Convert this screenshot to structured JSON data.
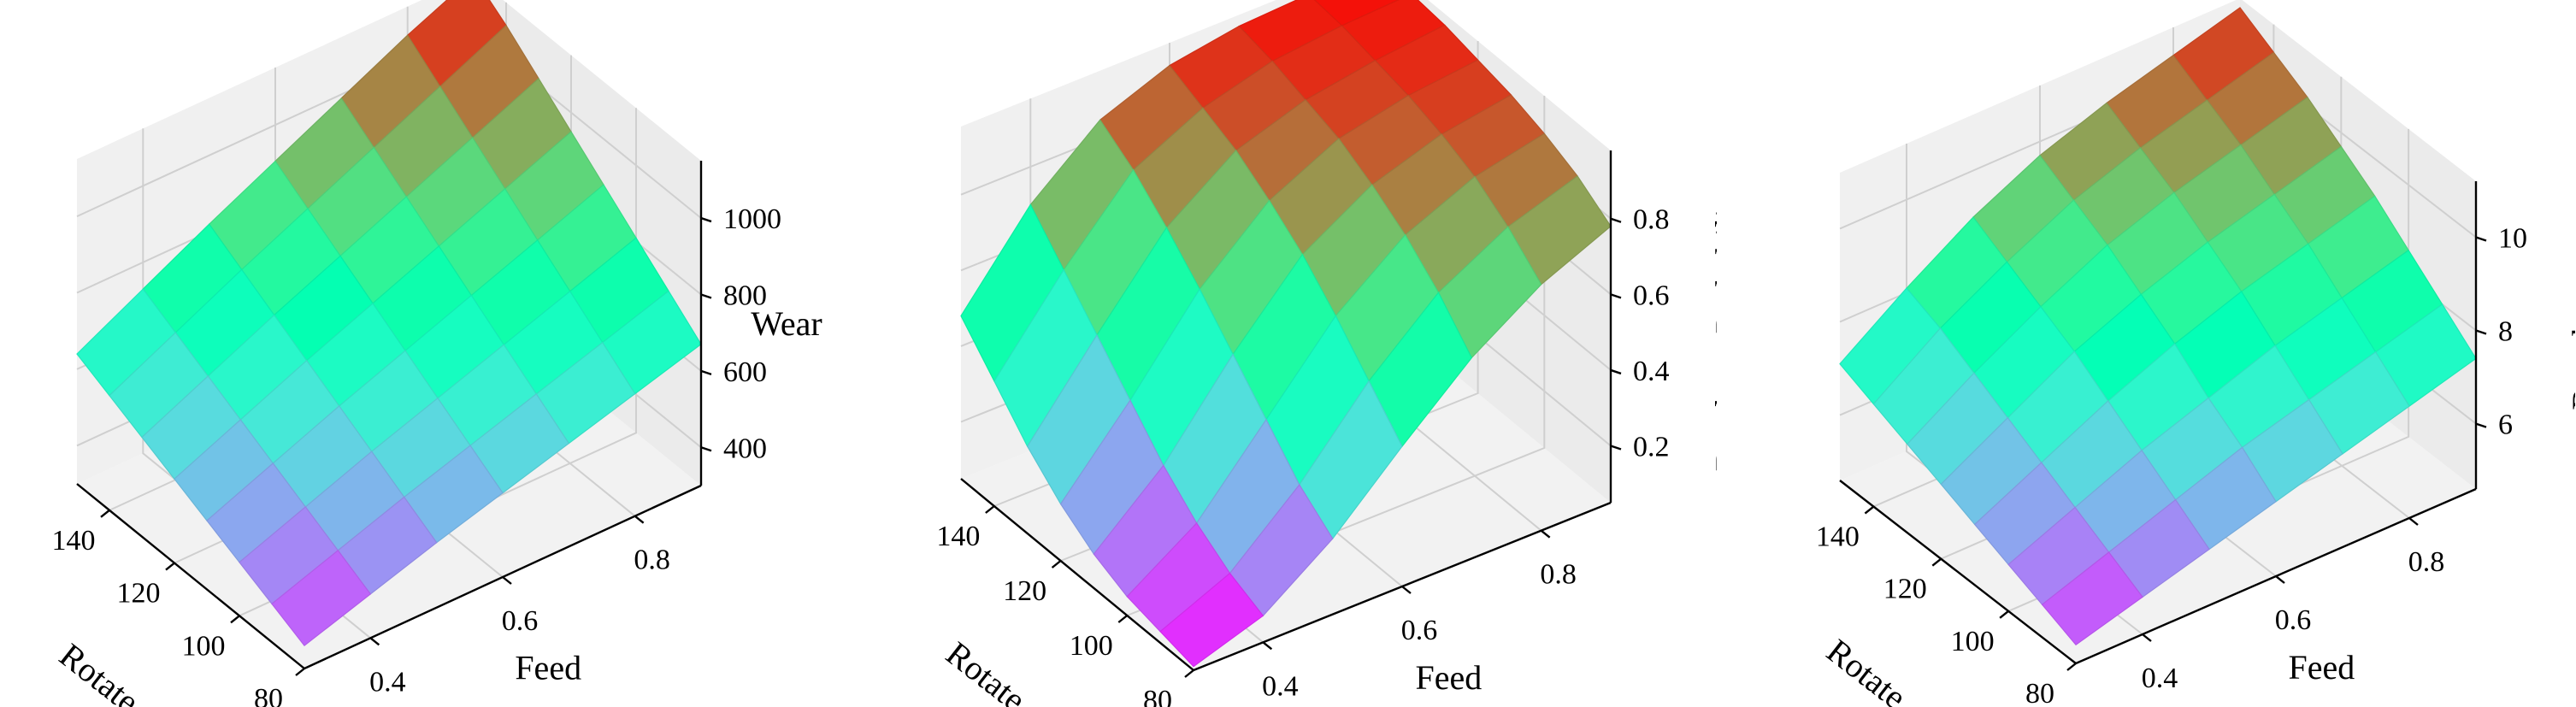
{
  "chart_data": [
    {
      "type": "surface3d",
      "xlabel": "Feed",
      "ylabel": "Rotate",
      "zlabel": "Wear",
      "x_ticks": [
        "0.4",
        "0.6",
        "0.8"
      ],
      "y_ticks": [
        "140",
        "120",
        "100",
        "80"
      ],
      "z_ticks": [
        "400",
        "600",
        "800",
        "1000"
      ],
      "xlim": [
        0.3,
        0.9
      ],
      "ylim": [
        80,
        150
      ],
      "zlim": [
        300,
        1150
      ],
      "colormap": "rainbow",
      "grid": true,
      "feed": [
        0.3,
        0.4,
        0.5,
        0.6,
        0.7,
        0.8,
        0.9
      ],
      "rotate": [
        80,
        90,
        100,
        110,
        120,
        130,
        140,
        150
      ],
      "z": [
        [
          360,
          415,
          470,
          520,
          570,
          620,
          670
        ],
        [
          400,
          460,
          520,
          575,
          630,
          685,
          740
        ],
        [
          440,
          505,
          570,
          630,
          690,
          750,
          810
        ],
        [
          480,
          550,
          620,
          685,
          750,
          815,
          880
        ],
        [
          520,
          595,
          670,
          740,
          810,
          880,
          950
        ],
        [
          560,
          640,
          720,
          795,
          870,
          945,
          1020
        ],
        [
          600,
          685,
          770,
          850,
          930,
          1010,
          1090
        ],
        [
          640,
          730,
          820,
          905,
          990,
          1075,
          1150
        ]
      ]
    },
    {
      "type": "surface3d",
      "xlabel": "Feed",
      "ylabel": "Rotate",
      "zlabel": "Breakage Probability",
      "x_ticks": [
        "0.4",
        "0.6",
        "0.8"
      ],
      "y_ticks": [
        "140",
        "120",
        "100",
        "80"
      ],
      "z_ticks": [
        "0.2",
        "0.4",
        "0.6",
        "0.8"
      ],
      "xlim": [
        0.3,
        0.9
      ],
      "ylim": [
        80,
        150
      ],
      "zlim": [
        0.05,
        0.98
      ],
      "colormap": "rainbow",
      "grid": true,
      "feed": [
        0.3,
        0.4,
        0.5,
        0.6,
        0.7,
        0.8,
        0.9
      ],
      "rotate": [
        80,
        90,
        100,
        110,
        120,
        130,
        140,
        150
      ],
      "z": [
        [
          0.06,
          0.12,
          0.25,
          0.42,
          0.58,
          0.7,
          0.78
        ],
        [
          0.08,
          0.16,
          0.32,
          0.52,
          0.68,
          0.78,
          0.84
        ],
        [
          0.1,
          0.22,
          0.42,
          0.62,
          0.76,
          0.84,
          0.88
        ],
        [
          0.14,
          0.3,
          0.52,
          0.71,
          0.82,
          0.88,
          0.91
        ],
        [
          0.2,
          0.4,
          0.62,
          0.78,
          0.87,
          0.91,
          0.93
        ],
        [
          0.28,
          0.5,
          0.71,
          0.84,
          0.9,
          0.93,
          0.95
        ],
        [
          0.38,
          0.6,
          0.79,
          0.88,
          0.93,
          0.95,
          0.96
        ],
        [
          0.48,
          0.7,
          0.85,
          0.92,
          0.95,
          0.96,
          0.97
        ]
      ]
    },
    {
      "type": "surface3d",
      "xlabel": "Feed",
      "ylabel": "Rotate",
      "zlabel": "Roughness",
      "x_ticks": [
        "0.4",
        "0.6",
        "0.8"
      ],
      "y_ticks": [
        "140",
        "120",
        "100",
        "80"
      ],
      "z_ticks": [
        "6",
        "8",
        "10"
      ],
      "xlim": [
        0.3,
        0.9
      ],
      "ylim": [
        80,
        150
      ],
      "zlim": [
        4.6,
        11.2
      ],
      "colormap": "rainbow",
      "grid": true,
      "feed": [
        0.3,
        0.4,
        0.5,
        0.6,
        0.7,
        0.8,
        0.9
      ],
      "rotate": [
        80,
        90,
        100,
        110,
        120,
        130,
        140,
        150
      ],
      "z": [
        [
          5.0,
          5.4,
          5.8,
          6.2,
          6.6,
          7.0,
          7.4
        ],
        [
          5.3,
          5.8,
          6.3,
          6.8,
          7.2,
          7.6,
          8.0
        ],
        [
          5.6,
          6.2,
          6.8,
          7.3,
          7.8,
          8.2,
          8.6
        ],
        [
          5.9,
          6.6,
          7.3,
          7.9,
          8.4,
          8.8,
          9.2
        ],
        [
          6.2,
          7.0,
          7.8,
          8.4,
          8.9,
          9.3,
          9.7
        ],
        [
          6.5,
          7.4,
          8.2,
          8.9,
          9.4,
          9.8,
          10.2
        ],
        [
          6.8,
          7.8,
          8.6,
          9.3,
          9.8,
          10.2,
          10.6
        ],
        [
          7.1,
          8.1,
          9.0,
          9.7,
          10.2,
          10.6,
          11.0
        ]
      ]
    }
  ]
}
